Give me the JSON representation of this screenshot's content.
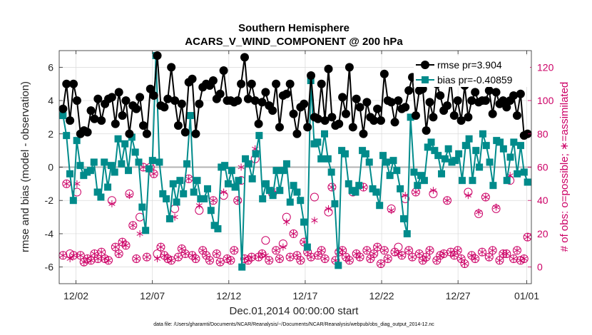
{
  "chart_data": {
    "type": "line",
    "title": "Southern Hemisphere",
    "subtitle": "ACARS_V_WIND_COMPONENT @ 200 hPa",
    "xlabel": "Dec.01,2014 00:00:00 start",
    "ylabel_left": "rmse and bias (model - observation)",
    "ylabel_right": "# of obs: o=possible; ∗=assimilated",
    "footnote": "data file: /Users/gharamti/Documents/NCAR/Reanalysis/~/Documents/NCAR/Reanalysis/webpub/obs_diag_output_2014-12.nc",
    "x_range_days": [
      0.4,
      31.3
    ],
    "ylim_left": [
      -7,
      7
    ],
    "ylim_right": [
      -10,
      130
    ],
    "x_ticks": [
      {
        "day": 1.5,
        "label": "12/02"
      },
      {
        "day": 6.5,
        "label": "12/07"
      },
      {
        "day": 11.5,
        "label": "12/12"
      },
      {
        "day": 16.5,
        "label": "12/17"
      },
      {
        "day": 21.5,
        "label": "12/22"
      },
      {
        "day": 26.5,
        "label": "12/27"
      },
      {
        "day": 31.0,
        "label": "01/01"
      }
    ],
    "y_ticks_left": [
      -6,
      -4,
      -2,
      0,
      2,
      4,
      6
    ],
    "y_ticks_right": [
      0,
      20,
      40,
      60,
      80,
      100,
      120
    ],
    "grid": true,
    "zero_line": true,
    "legend_position": "top-right",
    "colors": {
      "rmse": "#000000",
      "bias": "#008b8b",
      "obs": "#cc0066",
      "zero": "#b3b3b3",
      "grid": "#d9d9d9"
    },
    "series": [
      {
        "name": "rmse pr=3.904",
        "axis": "left",
        "marker": "circle",
        "values": [
          3.5,
          5.0,
          2.8,
          5.0,
          4.0,
          2.0,
          2.2,
          2.1,
          3.4,
          2.9,
          4.1,
          2.8,
          3.8,
          4.1,
          4.2,
          2.6,
          4.5,
          3.1,
          4.0,
          2.0,
          3.7,
          3.5,
          4.2,
          2.5,
          2.0,
          4.7,
          4.3,
          6.7,
          3.7,
          3.6,
          4.1,
          6.0,
          4.0,
          2.5,
          3.8,
          2.1,
          5.1,
          5.3,
          2.0,
          3.8,
          4.8,
          5.0,
          4.9,
          5.2,
          4.1,
          4.4,
          5.8,
          4.0,
          4.0,
          3.9,
          4.0,
          5.0,
          6.6,
          4.1,
          5.0,
          4.0,
          2.6,
          3.9,
          4.5,
          3.7,
          3.4,
          5.0,
          2.4,
          4.3,
          4.4,
          5.0,
          3.2,
          2.0,
          3.6,
          3.8,
          2.4,
          5.5,
          3.0,
          2.9,
          5.0,
          2.8,
          5.9,
          3.0,
          2.5,
          2.6,
          4.2,
          3.2,
          6.0,
          2.4,
          4.1,
          3.6,
          2.0,
          3.9,
          3.0,
          2.8,
          3.5,
          2.8,
          5.6,
          4.0,
          3.9,
          2.7,
          4.0,
          3.5,
          3.6,
          4.6,
          5.4,
          3.1,
          4.6,
          4.7,
          2.2,
          3.9,
          3.0,
          5.0,
          4.3,
          3.4,
          3.7,
          5.2,
          3.1,
          4.0,
          2.8,
          4.9,
          3.0,
          4.0,
          4.5,
          3.9,
          4.0,
          4.0,
          4.6,
          3.2,
          4.5,
          3.8,
          4.0,
          3.6,
          4.0,
          4.3,
          3.1,
          4.4,
          1.9,
          2.0
        ]
      },
      {
        "name": "bias pr=-0.40859",
        "axis": "left",
        "marker": "square",
        "values": [
          3.1,
          1.9,
          -0.4,
          -2.0,
          1.6,
          0.1,
          -0.5,
          -0.3,
          -0.2,
          0.3,
          -1.5,
          -1.8,
          0.3,
          -1.2,
          0.1,
          -0.3,
          1.7,
          0.2,
          1.4,
          -0.2,
          1.8,
          0.9,
          0.3,
          -2.4,
          -3.8,
          -0.1,
          0.4,
          6.7,
          0.3,
          -1.6,
          -1.9,
          -3.1,
          -1.0,
          -2.1,
          -0.8,
          -1.6,
          0.2,
          3.1,
          -1.5,
          -0.8,
          -1.9,
          -1.9,
          -1.3,
          -2.6,
          -3.5,
          -3.7,
          0.0,
          0.1,
          -1.0,
          -0.2,
          -1.2,
          -0.8,
          -6.0,
          0.5,
          0.2,
          -0.7,
          0.8,
          1.9,
          -1.9,
          -1.0,
          -1.4,
          -1.7,
          -0.2,
          -1.4,
          -0.2,
          0.2,
          -2.1,
          -1.1,
          -1.5,
          -2.0,
          -3.3,
          -4.8,
          5.2,
          1.4,
          1.5,
          0.5,
          2.0,
          0.5,
          -0.3,
          -2.2,
          -5.9,
          1.0,
          0.8,
          -1.0,
          -1.4,
          -1.5,
          -1.1,
          1.0,
          0.8,
          0.3,
          -1.3,
          -1.5,
          -2.3,
          0.7,
          0.3,
          -0.5,
          0.4,
          -0.2,
          -1.3,
          -3.1,
          -4.0,
          3.0,
          -0.3,
          -1.1,
          -0.5,
          -0.8,
          1.2,
          1.5,
          1.0,
          0.7,
          -0.4,
          0.5,
          1.1,
          0.3,
          0.4,
          0.8,
          -0.8,
          1.3,
          1.7,
          -0.8,
          1.0,
          0.0,
          2.0,
          1.3,
          0.3,
          -1.1,
          1.6,
          1.5,
          1.1,
          -0.8,
          0.6,
          1.5,
          -0.4,
          1.3,
          -0.3,
          -0.9
        ]
      },
      {
        "name": "possible",
        "axis": "right",
        "marker": "circle-open",
        "values": [
          7,
          50,
          8,
          7,
          45,
          7,
          3,
          5,
          4,
          8,
          5,
          9,
          5,
          4,
          40,
          12,
          8,
          15,
          13,
          44,
          25,
          5,
          30,
          60,
          6,
          60,
          56,
          8,
          12,
          7,
          5,
          4,
          35,
          6,
          11,
          8,
          53,
          7,
          5,
          34,
          10,
          7,
          4,
          40,
          8,
          3,
          43,
          5,
          4,
          10,
          40,
          52,
          5,
          4,
          6,
          65,
          6,
          8,
          16,
          4,
          44,
          10,
          5,
          14,
          30,
          6,
          20,
          7,
          4,
          15,
          9,
          6,
          42,
          7,
          10,
          5,
          33,
          48,
          4,
          9,
          10,
          6,
          4,
          45,
          8,
          6,
          48,
          10,
          5,
          8,
          12,
          2,
          10,
          5,
          35,
          9,
          12,
          7,
          41,
          10,
          6,
          45,
          8,
          4,
          6,
          10,
          44,
          4,
          7,
          8,
          40,
          9,
          7,
          10,
          5,
          2,
          45,
          7,
          5,
          32,
          9,
          42,
          6,
          10,
          35,
          4,
          8,
          8,
          52,
          5,
          10,
          4,
          5,
          18
        ]
      },
      {
        "name": "assimilated",
        "axis": "right",
        "marker": "asterisk",
        "values": [
          7,
          50,
          5,
          7,
          50,
          7,
          3,
          5,
          4,
          8,
          5,
          9,
          5,
          4,
          38,
          12,
          8,
          15,
          13,
          43,
          25,
          5,
          20,
          60,
          6,
          60,
          56,
          5,
          12,
          7,
          5,
          4,
          30,
          6,
          11,
          8,
          53,
          7,
          5,
          37,
          10,
          7,
          4,
          40,
          8,
          3,
          45,
          5,
          4,
          10,
          40,
          60,
          5,
          4,
          6,
          71,
          6,
          8,
          7,
          4,
          46,
          10,
          5,
          12,
          27,
          6,
          20,
          7,
          4,
          15,
          9,
          6,
          28,
          7,
          10,
          5,
          35,
          48,
          4,
          9,
          10,
          6,
          4,
          45,
          8,
          6,
          48,
          10,
          5,
          8,
          12,
          2,
          10,
          5,
          34,
          9,
          8,
          7,
          43,
          10,
          6,
          45,
          8,
          4,
          6,
          10,
          46,
          4,
          7,
          8,
          40,
          9,
          7,
          10,
          5,
          2,
          43,
          7,
          5,
          33,
          9,
          42,
          6,
          10,
          36,
          4,
          8,
          8,
          55,
          5,
          10,
          4,
          5,
          18
        ]
      }
    ]
  }
}
